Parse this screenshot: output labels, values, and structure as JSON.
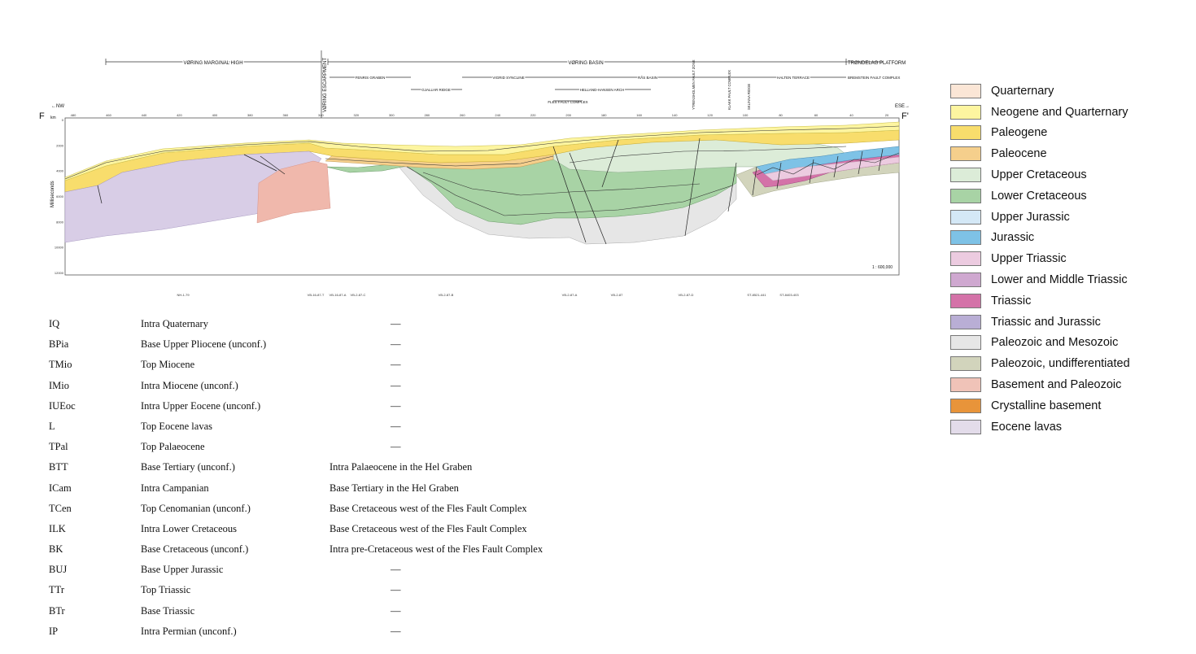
{
  "section": {
    "start_label": "F",
    "end_label": "F'",
    "left_direction": "←NW",
    "right_direction": "ESE→",
    "axis_unit": "km",
    "y_axis_label": "Milliseconds",
    "scale": "1 : 600,000",
    "km_ticks": [
      "480",
      "460",
      "440",
      "420",
      "400",
      "380",
      "360",
      "340",
      "320",
      "300",
      "280",
      "260",
      "240",
      "220",
      "200",
      "180",
      "160",
      "140",
      "120",
      "100",
      "80",
      "60",
      "40",
      "20"
    ],
    "ms_ticks": [
      "0",
      "2000",
      "4000",
      "6000",
      "8000",
      "10000",
      "12000"
    ],
    "regions": [
      {
        "label": "VØRING MARGINAL HIGH"
      },
      {
        "label": "VØRING BASIN"
      },
      {
        "label": "TRØNDELAG PLATFORM"
      }
    ],
    "vertical_label": "VØRING ESCARPMENT",
    "subregions": [
      {
        "label": "FENRIS GRABEN"
      },
      {
        "label": "VIGRID SYNCLINE"
      },
      {
        "label": "RÅS BASIN"
      },
      {
        "label": "HALTEN TERRACE"
      },
      {
        "label": "BREMSTEIN FAULT COMPLEX"
      },
      {
        "label": "GJALLAR RIDGE"
      },
      {
        "label": "HELLAND-HANSEN ARCH"
      },
      {
        "label": "FLES FAULT COMPLEX"
      }
    ],
    "fault_zones": [
      "YTRENSHOLMEN FAULT ZONE",
      "KLAKK FAULT COMPLEX",
      "SKLINNA RIDGE"
    ],
    "wells_bottom": [
      "NH-1-79",
      "VB-16-87-T",
      "VB-16-87-A",
      "VB-2-87-C",
      "VB-2-87-B",
      "VB-2-87-A",
      "VB-2-87",
      "VB-2-87-D",
      "ST-8521-441",
      "ST-8403-403"
    ]
  },
  "legend": [
    {
      "label": "Quarternary",
      "color": "#fbe6d6"
    },
    {
      "label": "Neogene and Quarternary",
      "color": "#fdf5a0"
    },
    {
      "label": "Paleogene",
      "color": "#f8dd6c"
    },
    {
      "label": "Paleocene",
      "color": "#f5cf8c"
    },
    {
      "label": "Upper Cretaceous",
      "color": "#dcecd8"
    },
    {
      "label": "Lower Cretaceous",
      "color": "#a8d3a5"
    },
    {
      "label": "Upper Jurassic",
      "color": "#d4e8f6"
    },
    {
      "label": "Jurassic",
      "color": "#7ec2e6"
    },
    {
      "label": "Upper Triassic",
      "color": "#eccbe0"
    },
    {
      "label": "Lower and Middle Triassic",
      "color": "#cfa8d0"
    },
    {
      "label": "Triassic",
      "color": "#d472a8"
    },
    {
      "label": "Triassic and Jurassic",
      "color": "#b9aed5"
    },
    {
      "label": "Paleozoic and Mesozoic",
      "color": "#e6e6e6"
    },
    {
      "label": "Paleozoic, undifferentiated",
      "color": "#d2d4bc"
    },
    {
      "label": "Basement and Paleozoic",
      "color": "#f0c3b8"
    },
    {
      "label": "Crystalline basement",
      "color": "#e8943a"
    },
    {
      "label": "Eocene lavas",
      "color": "#e3dcea"
    }
  ],
  "horizons": [
    {
      "code": "IQ",
      "name": "Intra Quaternary",
      "note": "",
      "dash": "—"
    },
    {
      "code": "BPia",
      "name": "Base Upper Pliocene (unconf.)",
      "note": "",
      "dash": "—"
    },
    {
      "code": "TMio",
      "name": "Top Miocene",
      "note": "",
      "dash": "—"
    },
    {
      "code": "IMio",
      "name": "Intra Miocene (unconf.)",
      "note": "",
      "dash": "—"
    },
    {
      "code": "IUEoc",
      "name": "Intra Upper Eocene (unconf.)",
      "note": "",
      "dash": "—"
    },
    {
      "code": "L",
      "name": "Top Eocene lavas",
      "note": "",
      "dash": "—"
    },
    {
      "code": "TPal",
      "name": "Top Palaeocene",
      "note": "",
      "dash": "—"
    },
    {
      "code": "BTT",
      "name": "Base Tertiary (unconf.)",
      "note": "Intra Palaeocene in the Hel Graben",
      "dash": ""
    },
    {
      "code": "ICam",
      "name": "Intra Campanian",
      "note": "Base Tertiary in the Hel Graben",
      "dash": ""
    },
    {
      "code": "TCen",
      "name": "Top Cenomanian (unconf.)",
      "note": "Base Cretaceous west of the Fles Fault Complex",
      "dash": ""
    },
    {
      "code": "ILK",
      "name": "Intra Lower Cretaceous",
      "note": "Base Cretaceous west of the Fles Fault Complex",
      "dash": ""
    },
    {
      "code": "BK",
      "name": "Base Cretaceous (unconf.)",
      "note": "Intra pre-Cretaceous west of the Fles Fault Complex",
      "dash": ""
    },
    {
      "code": "BUJ",
      "name": "Base Upper Jurassic",
      "note": "",
      "dash": "—"
    },
    {
      "code": "TTr",
      "name": "Top Triassic",
      "note": "",
      "dash": "—"
    },
    {
      "code": "BTr",
      "name": "Base Triassic",
      "note": "",
      "dash": "—"
    },
    {
      "code": "IP",
      "name": "Intra Permian (unconf.)",
      "note": "",
      "dash": "—"
    }
  ]
}
